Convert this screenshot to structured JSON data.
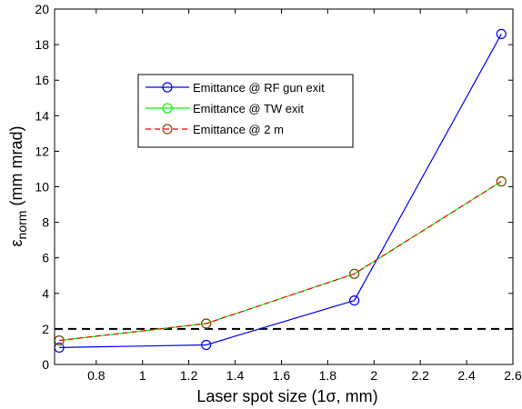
{
  "chart_data": {
    "type": "line",
    "xlabel": "Laser spot size (1σ, mm)",
    "ylabel_main": "ε",
    "ylabel_sub": "norm",
    "ylabel_rest": " (mm mrad)",
    "xlim": [
      0.62,
      2.6
    ],
    "ylim": [
      0,
      20
    ],
    "xticks": [
      "0.8",
      "1",
      "1.2",
      "1.4",
      "1.6",
      "1.8",
      "2",
      "2.2",
      "2.4",
      "2.6"
    ],
    "xtick_values": [
      0.8,
      1.0,
      1.2,
      1.4,
      1.6,
      1.8,
      2.0,
      2.2,
      2.4,
      2.6
    ],
    "yticks": [
      "0",
      "2",
      "4",
      "6",
      "8",
      "10",
      "12",
      "14",
      "16",
      "18",
      "20"
    ],
    "ytick_values": [
      0,
      2,
      4,
      6,
      8,
      10,
      12,
      14,
      16,
      18,
      20
    ],
    "grid": false,
    "legend_position": "upper-left",
    "x": [
      0.64,
      1.275,
      1.915,
      2.55
    ],
    "series": [
      {
        "name": "Emittance @ RF gun exit",
        "values": [
          0.95,
          1.1,
          3.6,
          18.6
        ],
        "color": "#0000ff",
        "dash": "solid",
        "marker_color": "#0000ff"
      },
      {
        "name": "Emittance @ TW exit",
        "values": [
          1.35,
          2.3,
          5.1,
          10.3
        ],
        "color": "#00ff00",
        "dash": "solid",
        "marker_color": "#00ff00"
      },
      {
        "name": "Emittance @ 2 m",
        "values": [
          1.35,
          2.3,
          5.1,
          10.3
        ],
        "color": "#ff0000",
        "dash": "dashed",
        "marker_color": "#8b4513"
      }
    ],
    "reference_line": {
      "y": 2,
      "color": "#000000",
      "dash": "dashed"
    }
  }
}
